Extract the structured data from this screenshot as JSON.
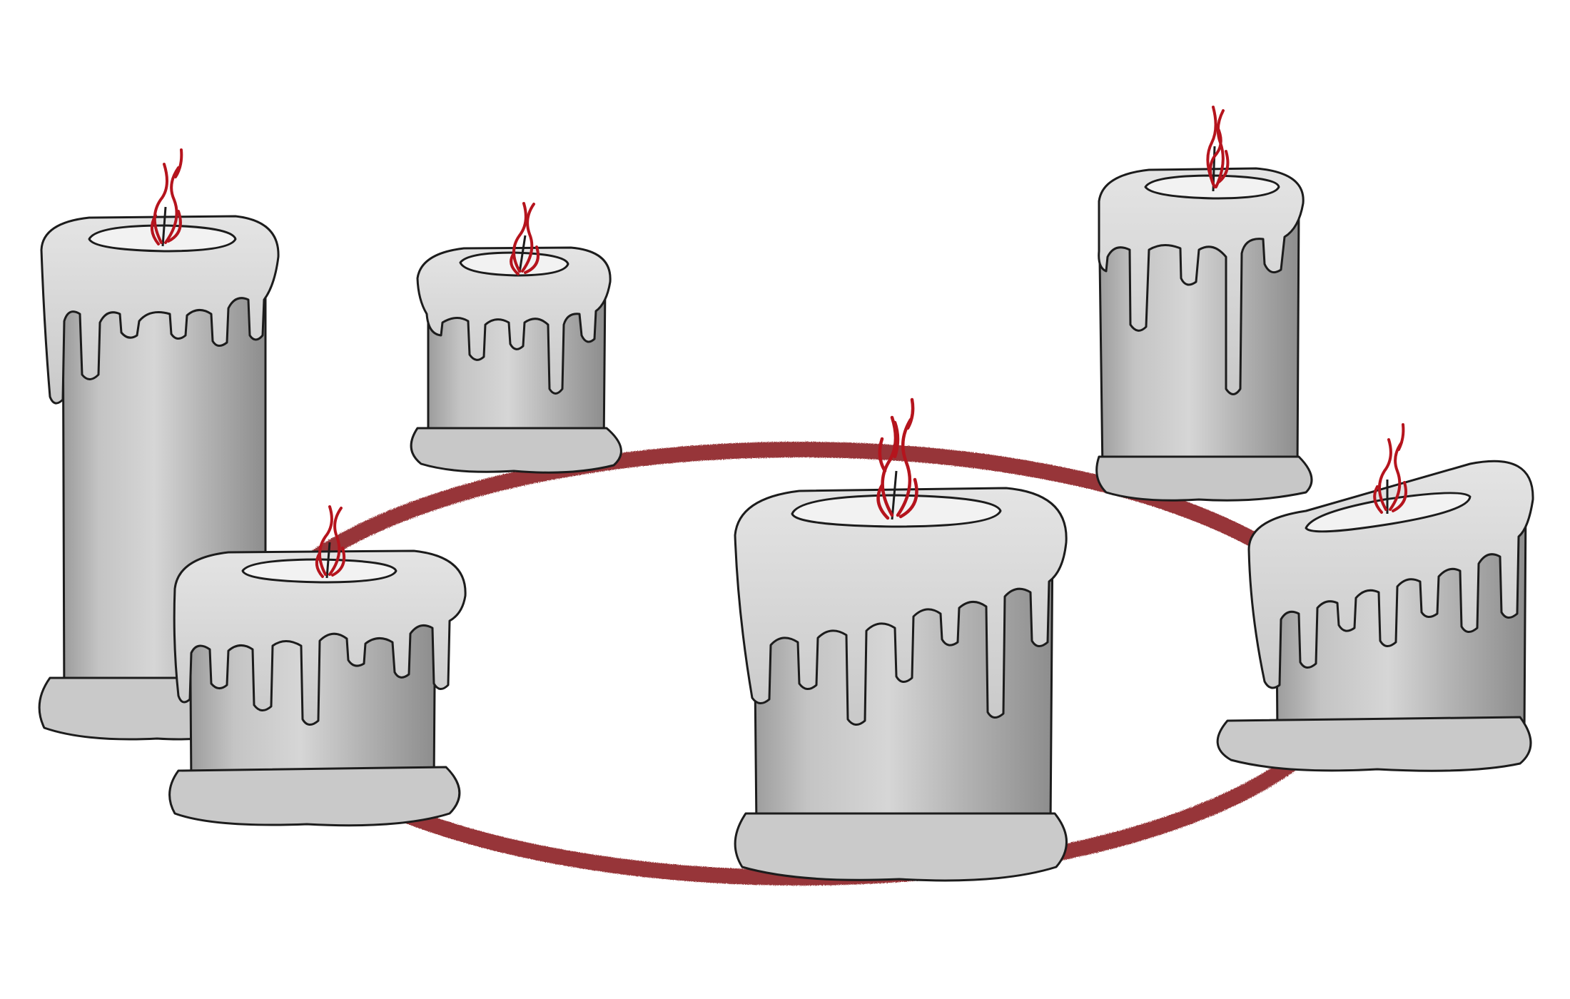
{
  "colors": {
    "background": "#ffffff",
    "ring": "#8e2426",
    "flame": "#b5141d",
    "wax_light": "#d9d9d9",
    "wax_mid": "#b9b9b9",
    "wax_dark": "#8f8f8f",
    "outline": "#1c1c1c"
  },
  "scene": {
    "ring": {
      "name": "red-ring"
    },
    "candles": [
      {
        "name": "candle-tall-left"
      },
      {
        "name": "candle-small-back"
      },
      {
        "name": "candle-small-front-left"
      },
      {
        "name": "candle-large-center"
      },
      {
        "name": "candle-back-right"
      },
      {
        "name": "candle-front-right"
      }
    ]
  }
}
